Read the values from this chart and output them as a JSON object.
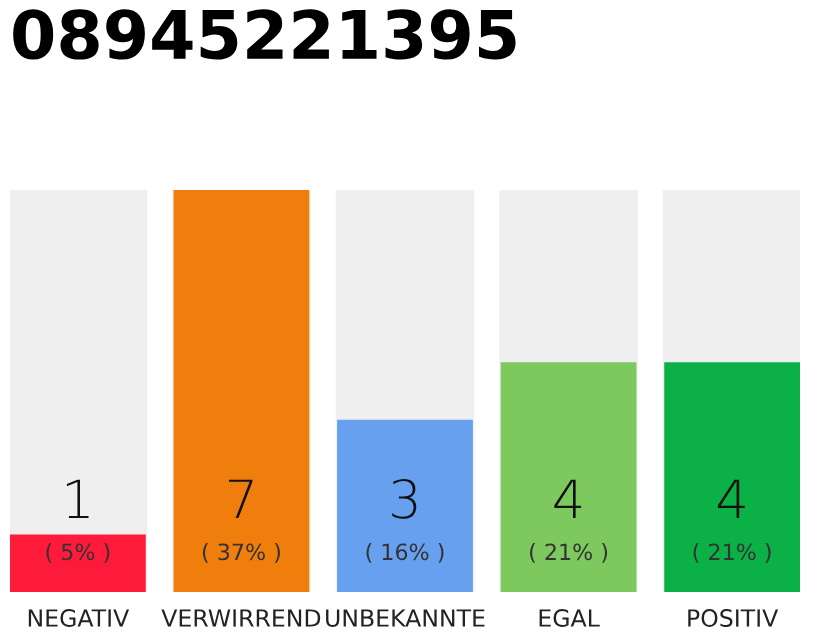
{
  "chart_data": {
    "type": "bar",
    "title": "08945221395",
    "data_labels": true,
    "categories": [
      "NEGATIV",
      "VERWIRREND",
      "UNBEKANNTE",
      "EGAL",
      "POSITIV"
    ],
    "values": [
      1,
      7,
      3,
      4,
      4
    ],
    "colors": [
      "#fe1a3a",
      "#f07e0c",
      "#66a0ee",
      "#7dc95e",
      "#0bb146"
    ],
    "annotations": [
      "( 5% )",
      "( 37% )",
      "( 16% )",
      "( 21% )",
      "( 21% )"
    ]
  }
}
